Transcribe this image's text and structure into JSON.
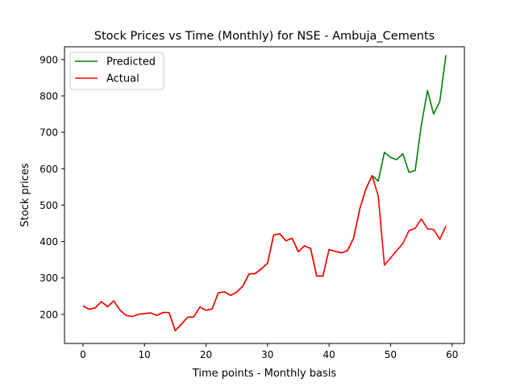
{
  "chart_data": {
    "type": "line",
    "title": "Stock Prices vs Time (Monthly) for NSE - Ambuja_Cements",
    "xlabel": "Time points - Monthly basis",
    "ylabel": "Stock prices",
    "xlim": [
      -3,
      62
    ],
    "ylim": [
      120,
      935
    ],
    "xticks": [
      0,
      10,
      20,
      30,
      40,
      50,
      60
    ],
    "yticks": [
      200,
      300,
      400,
      500,
      600,
      700,
      800,
      900
    ],
    "grid": false,
    "legend_position": "top-left",
    "series": [
      {
        "name": "Predicted",
        "color": "#008000",
        "x": [
          0,
          1,
          2,
          3,
          4,
          5,
          6,
          7,
          8,
          9,
          10,
          11,
          12,
          13,
          14,
          15,
          16,
          17,
          18,
          19,
          20,
          21,
          22,
          23,
          24,
          25,
          26,
          27,
          28,
          29,
          30,
          31,
          32,
          33,
          34,
          35,
          36,
          37,
          38,
          39,
          40,
          41,
          42,
          43,
          44,
          45,
          46,
          47,
          48,
          49,
          50,
          51,
          52,
          53,
          54,
          55,
          56,
          57,
          58,
          59
        ],
        "values": [
          223,
          214,
          218,
          235,
          221,
          237,
          212,
          197,
          194,
          200,
          202,
          204,
          197,
          205,
          205,
          155,
          173,
          192,
          193,
          220,
          211,
          215,
          259,
          262,
          252,
          261,
          278,
          311,
          312,
          325,
          340,
          418,
          421,
          402,
          409,
          372,
          388,
          381,
          305,
          305,
          378,
          373,
          369,
          375,
          410,
          490,
          545,
          581,
          566,
          645,
          631,
          625,
          641,
          590,
          595,
          720,
          815,
          750,
          785,
          912
        ]
      },
      {
        "name": "Actual",
        "color": "#ff0000",
        "x": [
          0,
          1,
          2,
          3,
          4,
          5,
          6,
          7,
          8,
          9,
          10,
          11,
          12,
          13,
          14,
          15,
          16,
          17,
          18,
          19,
          20,
          21,
          22,
          23,
          24,
          25,
          26,
          27,
          28,
          29,
          30,
          31,
          32,
          33,
          34,
          35,
          36,
          37,
          38,
          39,
          40,
          41,
          42,
          43,
          44,
          45,
          46,
          47,
          48,
          49,
          50,
          51,
          52,
          53,
          54,
          55,
          56,
          57,
          58,
          59
        ],
        "values": [
          223,
          214,
          218,
          235,
          221,
          237,
          212,
          197,
          194,
          200,
          202,
          204,
          197,
          205,
          205,
          155,
          173,
          192,
          193,
          220,
          211,
          215,
          259,
          262,
          252,
          261,
          278,
          311,
          312,
          325,
          340,
          418,
          421,
          402,
          409,
          372,
          388,
          381,
          305,
          305,
          378,
          373,
          369,
          375,
          410,
          490,
          545,
          581,
          525,
          335,
          355,
          375,
          395,
          430,
          436,
          462,
          435,
          433,
          406,
          443
        ]
      }
    ]
  }
}
